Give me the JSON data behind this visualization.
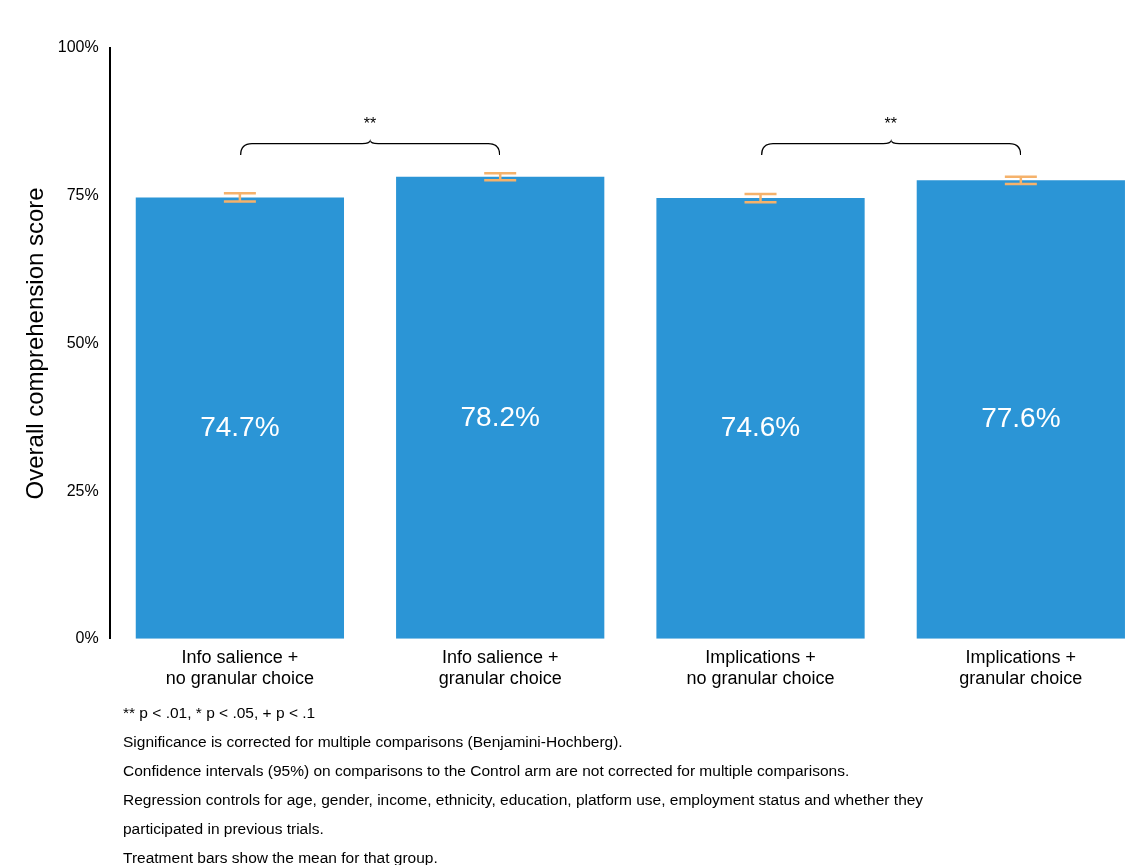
{
  "chart_data": {
    "type": "bar",
    "ylabel": "Overall comprehension score",
    "categories": [
      "Info salience +\nno granular choice",
      "Info salience +\ngranular choice",
      "Implications +\nno granular choice",
      "Implications +\ngranular choice"
    ],
    "values": [
      74.7,
      78.2,
      74.6,
      77.6
    ],
    "color": "#2b95d6",
    "errors": [
      0.7,
      0.6,
      0.7,
      0.6
    ],
    "value_labels": [
      "74.7%",
      "78.2%",
      "74.6%",
      "77.6%"
    ],
    "ylim": [
      0,
      100
    ],
    "yticks": [
      {
        "value": 0,
        "label": "0%"
      },
      {
        "value": 25,
        "label": "25%"
      },
      {
        "value": 50,
        "label": "50%"
      },
      {
        "value": 75,
        "label": "75%"
      },
      {
        "value": 100,
        "label": "100%"
      }
    ],
    "grid": false,
    "legend": false,
    "annotations": [
      "**",
      "**",
      "** p < .01, * p < .05, + p < .1",
      "Significance is corrected for multiple comparisons (Benjamini-Hochberg).",
      "Confidence intervals (95%) on comparisons to the Control arm are not corrected for multiple comparisons.",
      "Regression controls for age, gender, income, ethnicity, education, platform use, employment status and whether they",
      "participated in previous trials.",
      "Treatment bars show the mean for that group."
    ]
  }
}
